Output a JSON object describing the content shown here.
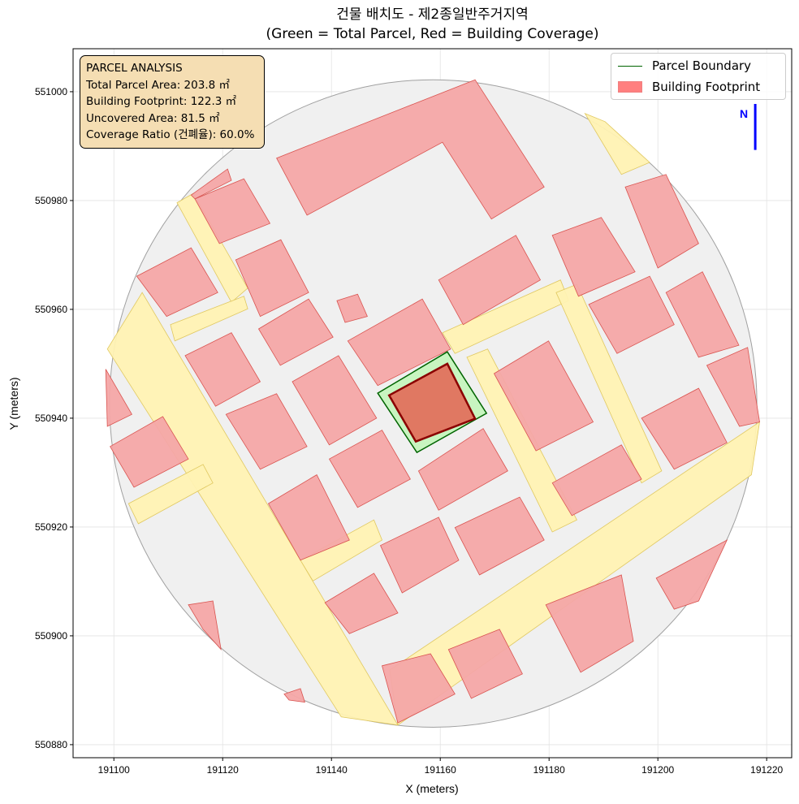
{
  "title": {
    "line1": "건물 배치도 - 제2종일반주거지역",
    "line2": "(Green = Total Parcel, Red = Building Coverage)"
  },
  "info_box": {
    "heading": "PARCEL ANALYSIS",
    "total_parcel_area": "Total Parcel Area: 203.8 ㎡",
    "building_footprint": "Building Footprint: 122.3 ㎡",
    "uncovered_area": "Uncovered Area: 81.5 ㎡",
    "coverage_ratio": "Coverage Ratio (건폐율): 60.0%"
  },
  "legend": {
    "parcel_boundary": "Parcel Boundary",
    "building_footprint": "Building Footprint"
  },
  "colors": {
    "site_fill": "#f0f0f0",
    "road_fill": "#fff2b3",
    "building_fill": "#f4a6a6",
    "building_edge": "#d9534f",
    "parcel_fill": "#c8f5c0",
    "parcel_edge": "#006400",
    "target_building_fill": "#e07862",
    "target_building_edge": "#8b0000",
    "north_arrow": "#0000ff"
  },
  "chart_data": {
    "type": "map",
    "xlabel": "X (meters)",
    "ylabel": "Y (meters)",
    "xlim": [
      191092.5,
      191224.6
    ],
    "ylim": [
      550877.6,
      551007.9
    ],
    "xticks": [
      191100,
      191120,
      191140,
      191160,
      191180,
      191200,
      191220
    ],
    "yticks": [
      550880,
      550900,
      550920,
      550940,
      550960,
      550980,
      551000
    ],
    "xtick_labels": [
      "191100",
      "191120",
      "191140",
      "191160",
      "191180",
      "191200",
      "191220"
    ],
    "ytick_labels": [
      "550880",
      "550900",
      "550920",
      "550940",
      "550960",
      "550980",
      "551000"
    ],
    "grid": true,
    "legend_position": "top-right",
    "site_boundary": {
      "center": [
        191158.7,
        550942.7
      ],
      "radius": 59.5
    },
    "roads": [
      [
        [
          191098.8,
          550952.7
        ],
        [
          191105.2,
          550963.1
        ],
        [
          191152.2,
          550883.6
        ],
        [
          191141.8,
          550885.1
        ]
      ],
      [
        [
          191150.7,
          550893.7
        ],
        [
          191218.7,
          550939.3
        ],
        [
          191217.2,
          550929.6
        ],
        [
          191152.2,
          550883.6
        ]
      ],
      [
        [
          191111.6,
          550979.6
        ],
        [
          191114.6,
          550981.3
        ],
        [
          191124.6,
          550963.9
        ],
        [
          191121.6,
          550961.3
        ]
      ],
      [
        [
          191160.4,
          550955.7
        ],
        [
          191182.1,
          550965.4
        ],
        [
          191183.6,
          550961.6
        ],
        [
          191162.7,
          550951.9
        ]
      ],
      [
        [
          191181.3,
          550963.1
        ],
        [
          191185.1,
          550964.6
        ],
        [
          191200.7,
          550930.3
        ],
        [
          191197.0,
          550928.1
        ]
      ],
      [
        [
          191164.9,
          550951.2
        ],
        [
          191168.7,
          550952.7
        ],
        [
          191185.1,
          550921.3
        ],
        [
          191180.6,
          550919.1
        ]
      ],
      [
        [
          191102.7,
          550924.3
        ],
        [
          191116.4,
          550931.5
        ],
        [
          191118.2,
          550928.1
        ],
        [
          191104.5,
          550920.6
        ]
      ],
      [
        [
          191134.3,
          550913.9
        ],
        [
          191147.8,
          550921.3
        ],
        [
          191149.3,
          550917.6
        ],
        [
          191136.6,
          550910.1
        ]
      ],
      [
        [
          191186.6,
          550996.0
        ],
        [
          191190.3,
          550994.5
        ],
        [
          191198.5,
          550987.0
        ],
        [
          191193.3,
          550984.8
        ]
      ],
      [
        [
          191110.4,
          550957.2
        ],
        [
          191123.9,
          550962.4
        ],
        [
          191124.6,
          550960.1
        ],
        [
          191111.2,
          550954.2
        ]
      ]
    ],
    "buildings": [
      [
        [
          191129.9,
          550987.8
        ],
        [
          191166.4,
          551002.2
        ],
        [
          191179.1,
          550982.5
        ],
        [
          191169.4,
          550976.6
        ],
        [
          191160.4,
          550990.7
        ],
        [
          191135.5,
          550977.3
        ]
      ],
      [
        [
          191114.9,
          550980.3
        ],
        [
          191123.9,
          550984.0
        ],
        [
          191128.7,
          550975.8
        ],
        [
          191119.4,
          550972.1
        ]
      ],
      [
        [
          191104.2,
          550966.1
        ],
        [
          191114.2,
          550971.3
        ],
        [
          191119.1,
          550963.1
        ],
        [
          191109.7,
          550958.7
        ]
      ],
      [
        [
          191122.4,
          550969.1
        ],
        [
          191130.7,
          550972.8
        ],
        [
          191135.8,
          550963.1
        ],
        [
          191126.9,
          550958.7
        ]
      ],
      [
        [
          191126.6,
          550956.4
        ],
        [
          191135.8,
          550961.9
        ],
        [
          191140.3,
          550954.9
        ],
        [
          191130.6,
          550949.7
        ]
      ],
      [
        [
          191113.1,
          550951.5
        ],
        [
          191121.6,
          550955.7
        ],
        [
          191126.9,
          550946.7
        ],
        [
          191118.7,
          550942.2
        ]
      ],
      [
        [
          191120.6,
          550940.7
        ],
        [
          191129.9,
          550944.5
        ],
        [
          191135.5,
          550934.8
        ],
        [
          191126.9,
          550930.6
        ]
      ],
      [
        [
          191099.3,
          550934.8
        ],
        [
          191109.0,
          550940.3
        ],
        [
          191113.7,
          550932.5
        ],
        [
          191103.7,
          550927.3
        ]
      ],
      [
        [
          191132.8,
          550946.7
        ],
        [
          191141.3,
          550951.5
        ],
        [
          191148.3,
          550940.0
        ],
        [
          191139.6,
          550935.1
        ]
      ],
      [
        [
          191143.0,
          550954.2
        ],
        [
          191156.7,
          550961.9
        ],
        [
          191161.9,
          550952.7
        ],
        [
          191148.5,
          550946.0
        ]
      ],
      [
        [
          191139.6,
          550932.5
        ],
        [
          191149.3,
          550937.8
        ],
        [
          191154.5,
          550928.8
        ],
        [
          191144.8,
          550923.6
        ]
      ],
      [
        [
          191128.4,
          550924.3
        ],
        [
          191137.3,
          550929.6
        ],
        [
          191143.3,
          550917.6
        ],
        [
          191134.3,
          550913.9
        ]
      ],
      [
        [
          191156.0,
          550930.3
        ],
        [
          191167.9,
          550938.1
        ],
        [
          191172.4,
          550930.3
        ],
        [
          191159.7,
          550923.1
        ]
      ],
      [
        [
          191159.7,
          550965.4
        ],
        [
          191173.9,
          550973.6
        ],
        [
          191178.4,
          550965.4
        ],
        [
          191164.2,
          550957.2
        ]
      ],
      [
        [
          191169.9,
          550948.2
        ],
        [
          191179.9,
          550954.2
        ],
        [
          191188.1,
          550939.3
        ],
        [
          191177.6,
          550934.0
        ]
      ],
      [
        [
          191162.7,
          550919.9
        ],
        [
          191174.6,
          550925.5
        ],
        [
          191179.1,
          550917.6
        ],
        [
          191167.2,
          550911.2
        ]
      ],
      [
        [
          191149.0,
          550916.6
        ],
        [
          191159.7,
          550921.8
        ],
        [
          191163.4,
          550913.9
        ],
        [
          191153.0,
          550907.9
        ]
      ],
      [
        [
          191138.8,
          550906.1
        ],
        [
          191147.8,
          550911.5
        ],
        [
          191152.2,
          550904.2
        ],
        [
          191143.3,
          550900.4
        ]
      ],
      [
        [
          191149.3,
          550894.5
        ],
        [
          191158.2,
          550896.7
        ],
        [
          191162.7,
          550889.3
        ],
        [
          191152.2,
          550884.0
        ]
      ],
      [
        [
          191161.5,
          550897.5
        ],
        [
          191170.9,
          550901.2
        ],
        [
          191175.1,
          550893.0
        ],
        [
          191165.7,
          550888.5
        ]
      ],
      [
        [
          191179.4,
          550905.7
        ],
        [
          191193.3,
          550911.2
        ],
        [
          191195.5,
          550899.0
        ],
        [
          191185.8,
          550893.3
        ]
      ],
      [
        [
          191180.6,
          550928.1
        ],
        [
          191193.3,
          550935.1
        ],
        [
          191197.0,
          550928.8
        ],
        [
          191184.2,
          550922.1
        ]
      ],
      [
        [
          191197.0,
          550940.0
        ],
        [
          191207.5,
          550945.5
        ],
        [
          191212.7,
          550935.5
        ],
        [
          191203.0,
          550930.6
        ]
      ],
      [
        [
          191209.0,
          550949.7
        ],
        [
          191216.5,
          550953.0
        ],
        [
          191218.7,
          550939.3
        ],
        [
          191215.0,
          550938.5
        ]
      ],
      [
        [
          191201.5,
          550963.1
        ],
        [
          191208.2,
          550966.9
        ],
        [
          191214.9,
          550953.4
        ],
        [
          191207.5,
          550951.2
        ]
      ],
      [
        [
          191187.3,
          550960.9
        ],
        [
          191198.5,
          550966.1
        ],
        [
          191203.0,
          550957.2
        ],
        [
          191192.5,
          550951.9
        ]
      ],
      [
        [
          191180.6,
          550973.6
        ],
        [
          191189.6,
          550976.9
        ],
        [
          191195.8,
          550966.9
        ],
        [
          191185.4,
          550962.4
        ]
      ],
      [
        [
          191194.0,
          550982.5
        ],
        [
          191201.5,
          550984.8
        ],
        [
          191207.5,
          550972.1
        ],
        [
          191200.0,
          550967.6
        ]
      ],
      [
        [
          191199.7,
          550910.6
        ],
        [
          191212.7,
          550917.6
        ],
        [
          191207.5,
          550906.4
        ],
        [
          191203.0,
          550904.9
        ]
      ],
      [
        [
          191113.7,
          550905.7
        ],
        [
          191118.2,
          550906.4
        ],
        [
          191119.7,
          550897.5
        ],
        [
          191116.4,
          550901.2
        ]
      ],
      [
        [
          191098.5,
          550949.0
        ],
        [
          191103.3,
          550940.7
        ],
        [
          191098.8,
          550938.5
        ]
      ],
      [
        [
          191141.0,
          550961.6
        ],
        [
          191144.8,
          550962.8
        ],
        [
          191146.6,
          550958.7
        ],
        [
          191142.5,
          550957.6
        ]
      ],
      [
        [
          191114.2,
          550981.0
        ],
        [
          191120.9,
          550985.8
        ],
        [
          191121.6,
          550983.7
        ],
        [
          191114.9,
          550980.3
        ]
      ],
      [
        [
          191131.3,
          550889.3
        ],
        [
          191134.3,
          550890.3
        ],
        [
          191135.1,
          550887.8
        ],
        [
          191132.2,
          550888.2
        ]
      ]
    ],
    "parcel": [
      [
        191148.5,
        550944.6
      ],
      [
        191161.3,
        550952.2
      ],
      [
        191168.5,
        550940.9
      ],
      [
        191155.7,
        550933.7
      ]
    ],
    "target_building": [
      [
        191150.6,
        550944.2
      ],
      [
        191161.3,
        550950.0
      ],
      [
        191166.4,
        550939.9
      ],
      [
        191155.5,
        550935.7
      ]
    ],
    "north_arrow": {
      "label": "N",
      "x": 191217.9,
      "y_from": 550989.3,
      "y_to": 551001.9
    }
  }
}
